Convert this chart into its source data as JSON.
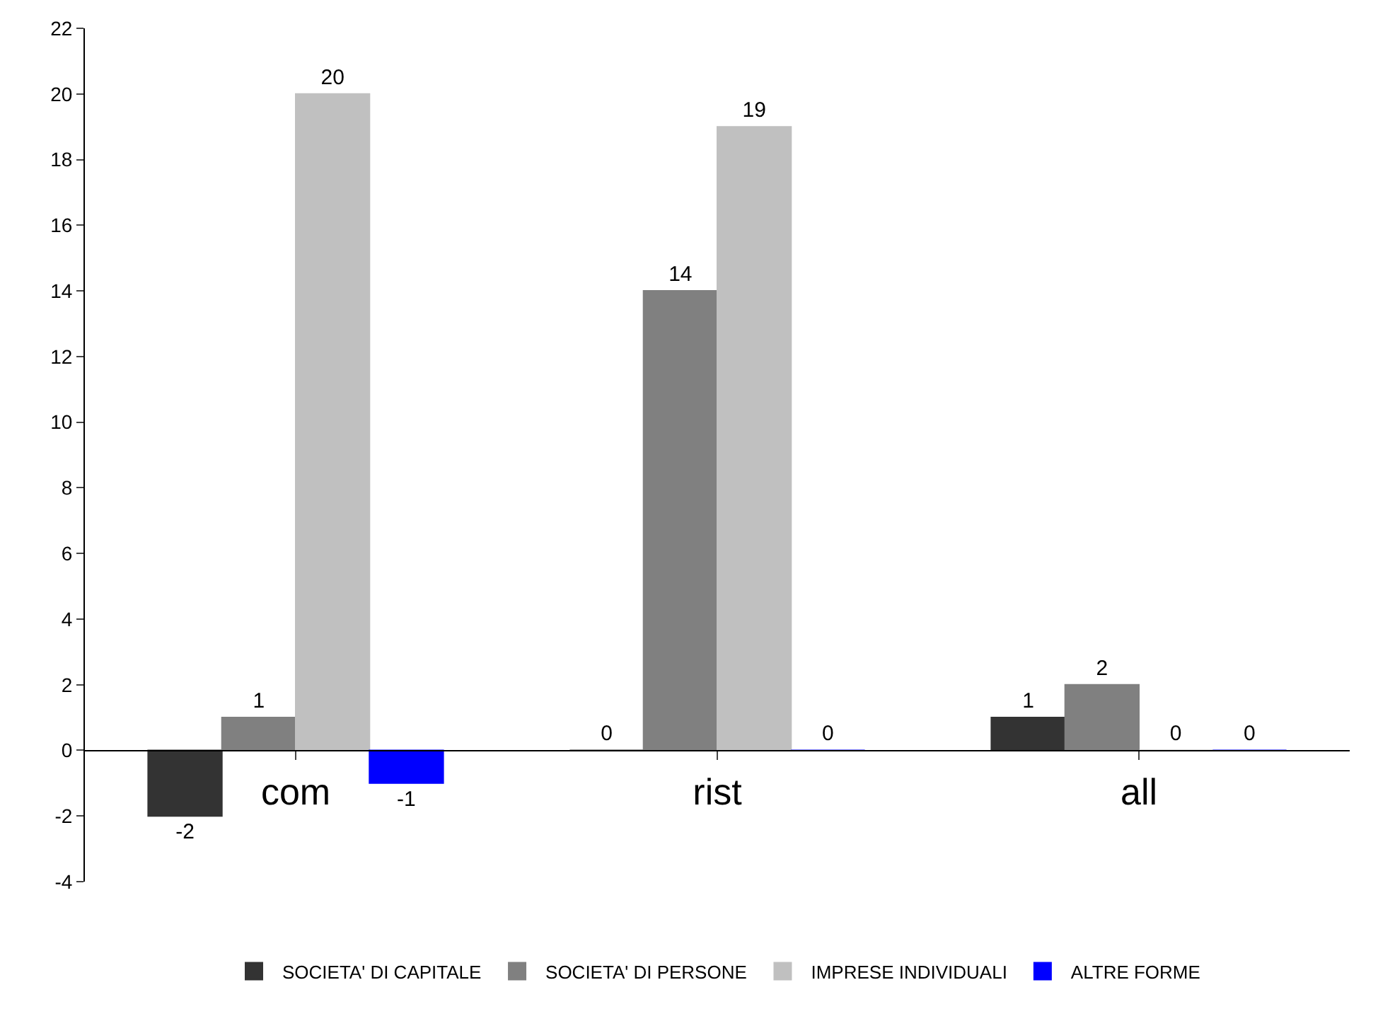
{
  "chart_data": {
    "type": "bar",
    "categories": [
      "com",
      "rist",
      "all"
    ],
    "series": [
      {
        "name": "SOCIETA' DI CAPITALE",
        "color": "#333333",
        "values": [
          -2,
          0,
          1
        ]
      },
      {
        "name": "SOCIETA' DI PERSONE",
        "color": "#808080",
        "values": [
          1,
          14,
          2
        ]
      },
      {
        "name": "IMPRESE INDIVIDUALI",
        "color": "#c0c0c0",
        "values": [
          20,
          19,
          0
        ]
      },
      {
        "name": "ALTRE FORME",
        "color": "#0000ff",
        "values": [
          -1,
          0,
          0
        ]
      }
    ],
    "ylim": [
      -4,
      22
    ],
    "yticks": [
      -4,
      -2,
      0,
      2,
      4,
      6,
      8,
      10,
      12,
      14,
      16,
      18,
      20,
      22
    ],
    "grid": false,
    "legend": "bottom",
    "data_labels": true
  }
}
